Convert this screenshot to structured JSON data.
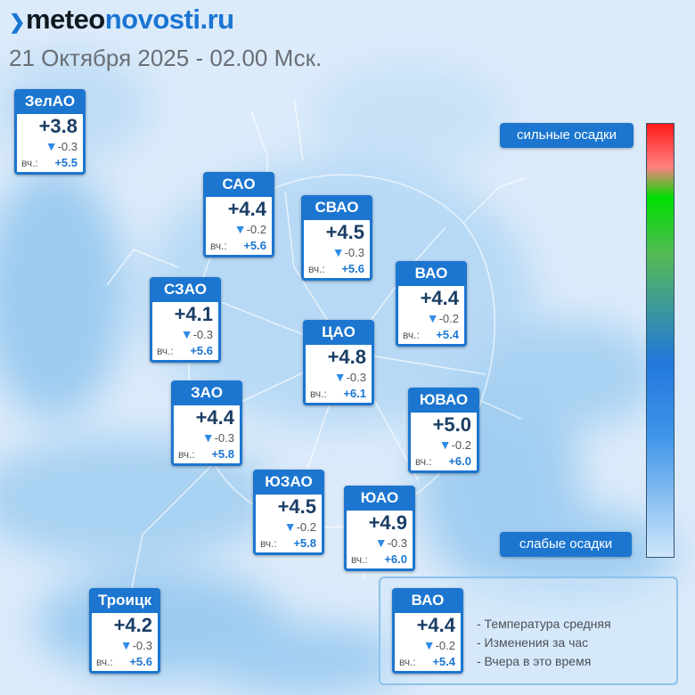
{
  "header": {
    "logo_part1": "meteo",
    "logo_part2": "novosti.ru",
    "subtitle": "21 Октября 2025 - 02.00 Мск."
  },
  "colors": {
    "accent": "#1c76d0",
    "map_light": "#dcebfa",
    "map_mid": "#9ccbf0"
  },
  "yesterday_label": "вч.:",
  "change_arrow": "down-triangle",
  "districts": [
    {
      "name": "ЗелАО",
      "temp": "+3.8",
      "change": "-0.3",
      "yesterday": "+5.5"
    },
    {
      "name": "САО",
      "temp": "+4.4",
      "change": "-0.2",
      "yesterday": "+5.6"
    },
    {
      "name": "СВАО",
      "temp": "+4.5",
      "change": "-0.3",
      "yesterday": "+5.6"
    },
    {
      "name": "ВАО",
      "temp": "+4.4",
      "change": "-0.2",
      "yesterday": "+5.4"
    },
    {
      "name": "СЗАО",
      "temp": "+4.1",
      "change": "-0.3",
      "yesterday": "+5.6"
    },
    {
      "name": "ЦАО",
      "temp": "+4.8",
      "change": "-0.3",
      "yesterday": "+6.1"
    },
    {
      "name": "ЗАО",
      "temp": "+4.4",
      "change": "-0.3",
      "yesterday": "+5.8"
    },
    {
      "name": "ЮВАО",
      "temp": "+5.0",
      "change": "-0.2",
      "yesterday": "+6.0"
    },
    {
      "name": "ЮЗАО",
      "temp": "+4.5",
      "change": "-0.2",
      "yesterday": "+5.8"
    },
    {
      "name": "ЮАО",
      "temp": "+4.9",
      "change": "-0.3",
      "yesterday": "+6.0"
    },
    {
      "name": "Троицк",
      "temp": "+4.2",
      "change": "-0.3",
      "yesterday": "+5.6"
    }
  ],
  "scale": {
    "top_label": "сильные осадки",
    "bottom_label": "слабые осадки"
  },
  "legend": {
    "sample": {
      "name": "ВАО",
      "temp": "+4.4",
      "change": "-0.2",
      "yesterday": "+5.4"
    },
    "lines": [
      "- Температура средняя",
      "- Изменения за час",
      "- Вчера в это время"
    ]
  }
}
